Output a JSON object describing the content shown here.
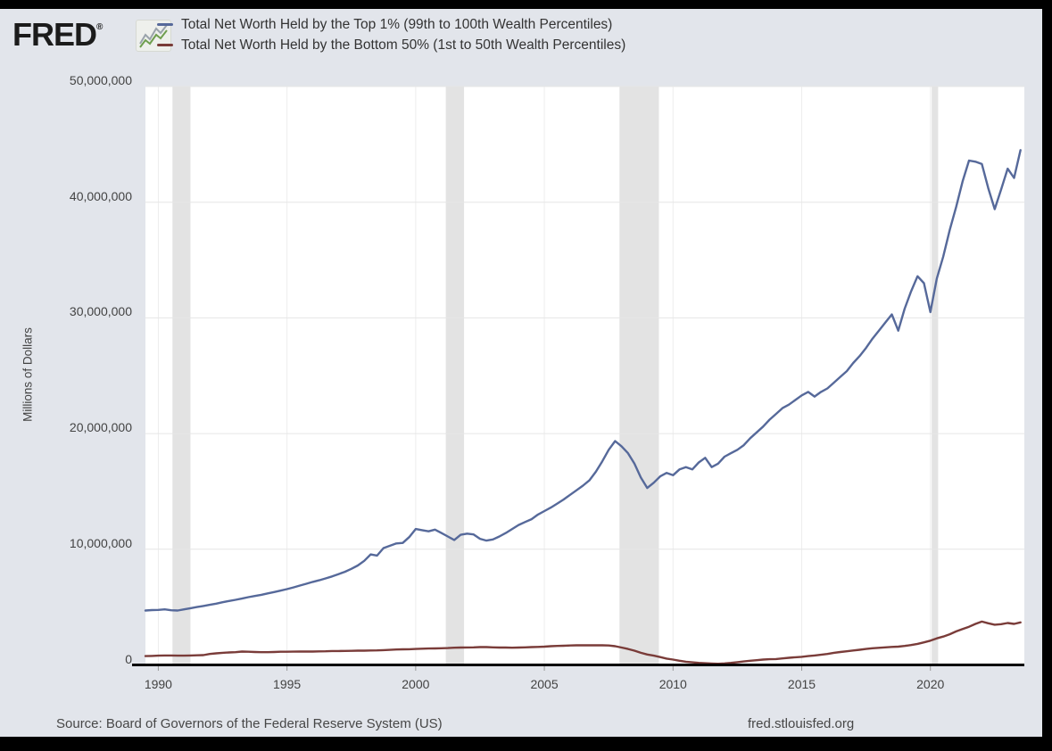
{
  "header": {
    "logo_text": "FRED",
    "registered_mark": "®",
    "legend": [
      {
        "label": "Total Net Worth Held by the Top 1% (99th to 100th Wealth Percentiles)",
        "color": "#56699a"
      },
      {
        "label": "Total Net Worth Held by the Bottom 50% (1st to 50th Wealth Percentiles)",
        "color": "#7a3c39"
      }
    ]
  },
  "footer": {
    "source": "Source: Board of Governors of the Federal Reserve System (US)",
    "site": "fred.stlouisfed.org"
  },
  "colors": {
    "page_bg": "#e2e5eb",
    "plot_bg": "#ffffff",
    "recession_band": "#e3e3e3",
    "h_gridline": "#e6e6e6",
    "v_gridline": "#ededed",
    "axis_line": "#000000",
    "tick_mark": "#999999",
    "top1_line": "#56699a",
    "bottom50_line": "#7a3c39",
    "logo_spark_gray": "#9aa3ab",
    "logo_spark_green": "#6f9e4f"
  },
  "chart_data": {
    "type": "line",
    "title": "",
    "ylabel": "Millions of Dollars",
    "xlabel": "",
    "grid": true,
    "legend_position": "top-left",
    "x_start": 1989.5,
    "x_step": 0.25,
    "xlim": [
      1989.5,
      2023.65
    ],
    "ylim": [
      0,
      50000000
    ],
    "x_axis": {
      "tick_values": [
        1990,
        1995,
        2000,
        2005,
        2010,
        2015,
        2020
      ],
      "tick_labels": [
        "1990",
        "1995",
        "2000",
        "2005",
        "2010",
        "2015",
        "2020"
      ]
    },
    "y_axis": {
      "tick_values": [
        0,
        10000000,
        20000000,
        30000000,
        40000000,
        50000000
      ],
      "tick_labels": [
        "0",
        "10,000,000",
        "20,000,000",
        "30,000,000",
        "40,000,000",
        "50,000,000"
      ]
    },
    "recession_bands": [
      [
        1990.55,
        1991.25
      ],
      [
        2001.17,
        2001.88
      ],
      [
        2007.92,
        2009.45
      ],
      [
        2020.05,
        2020.3
      ]
    ],
    "series": [
      {
        "name": "Total Net Worth Held by the Top 1% (99th to 100th Wealth Percentiles)",
        "color": "#56699a",
        "values": [
          4700000,
          4740000,
          4760000,
          4800000,
          4730000,
          4700000,
          4800000,
          4900000,
          5000000,
          5100000,
          5200000,
          5300000,
          5420000,
          5530000,
          5630000,
          5740000,
          5860000,
          5960000,
          6060000,
          6180000,
          6300000,
          6420000,
          6550000,
          6700000,
          6860000,
          7020000,
          7180000,
          7320000,
          7480000,
          7650000,
          7850000,
          8050000,
          8300000,
          8600000,
          9000000,
          9550000,
          9450000,
          10100000,
          10300000,
          10500000,
          10550000,
          11050000,
          11750000,
          11650000,
          11550000,
          11700000,
          11400000,
          11100000,
          10800000,
          11250000,
          11350000,
          11280000,
          10900000,
          10750000,
          10850000,
          11100000,
          11400000,
          11750000,
          12100000,
          12350000,
          12600000,
          13000000,
          13300000,
          13600000,
          13950000,
          14300000,
          14700000,
          15100000,
          15500000,
          15950000,
          16700000,
          17600000,
          18600000,
          19350000,
          18900000,
          18300000,
          17400000,
          16200000,
          15300000,
          15750000,
          16300000,
          16600000,
          16400000,
          16900000,
          17100000,
          16900000,
          17500000,
          17900000,
          17100000,
          17400000,
          18000000,
          18300000,
          18600000,
          19000000,
          19600000,
          20100000,
          20600000,
          21200000,
          21700000,
          22200000,
          22500000,
          22900000,
          23300000,
          23600000,
          23200000,
          23600000,
          23900000,
          24400000,
          24900000,
          25400000,
          26100000,
          26700000,
          27400000,
          28200000,
          28900000,
          29600000,
          30300000,
          28900000,
          30800000,
          32300000,
          33600000,
          33000000,
          30500000,
          33400000,
          35300000,
          37600000,
          39600000,
          41800000,
          43600000,
          43500000,
          43300000,
          41200000,
          39400000,
          41100000,
          42900000,
          42100000,
          44500000
        ]
      },
      {
        "name": "Total Net Worth Held by the Bottom 50% (1st to 50th Wealth Percentiles)",
        "color": "#7a3c39",
        "values": [
          760000,
          780000,
          800000,
          820000,
          820000,
          800000,
          800000,
          820000,
          830000,
          850000,
          950000,
          1000000,
          1050000,
          1080000,
          1100000,
          1160000,
          1140000,
          1120000,
          1100000,
          1100000,
          1120000,
          1140000,
          1140000,
          1150000,
          1160000,
          1160000,
          1160000,
          1170000,
          1180000,
          1200000,
          1200000,
          1210000,
          1220000,
          1230000,
          1230000,
          1250000,
          1260000,
          1280000,
          1300000,
          1330000,
          1350000,
          1360000,
          1380000,
          1400000,
          1420000,
          1430000,
          1440000,
          1460000,
          1490000,
          1500000,
          1510000,
          1520000,
          1540000,
          1540000,
          1520000,
          1500000,
          1500000,
          1490000,
          1500000,
          1520000,
          1540000,
          1560000,
          1580000,
          1620000,
          1640000,
          1660000,
          1680000,
          1700000,
          1700000,
          1700000,
          1700000,
          1700000,
          1680000,
          1620000,
          1500000,
          1380000,
          1230000,
          1050000,
          900000,
          800000,
          680000,
          550000,
          460000,
          360000,
          280000,
          220000,
          180000,
          150000,
          120000,
          100000,
          130000,
          180000,
          240000,
          300000,
          360000,
          410000,
          460000,
          490000,
          510000,
          560000,
          620000,
          660000,
          700000,
          760000,
          820000,
          880000,
          950000,
          1050000,
          1120000,
          1180000,
          1250000,
          1310000,
          1380000,
          1440000,
          1480000,
          1520000,
          1560000,
          1580000,
          1640000,
          1720000,
          1820000,
          1950000,
          2100000,
          2300000,
          2450000,
          2650000,
          2900000,
          3100000,
          3300000,
          3550000,
          3750000,
          3600000,
          3480000,
          3520000,
          3620000,
          3550000,
          3680000
        ]
      }
    ]
  }
}
